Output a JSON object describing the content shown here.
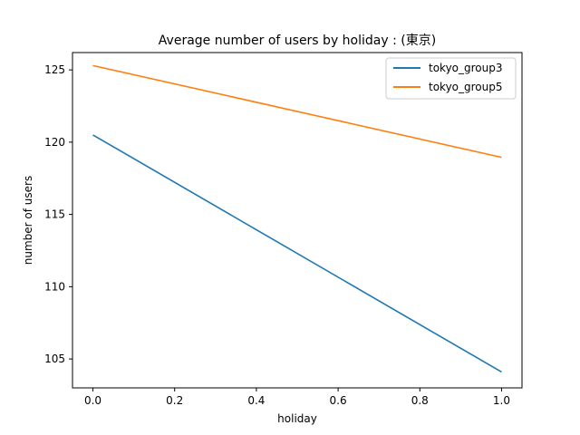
{
  "chart_data": {
    "type": "line",
    "title": "Average number of users by holiday : (東京)",
    "xlabel": "holiday",
    "ylabel": "number of users",
    "x": [
      0.0,
      1.0
    ],
    "xlim": [
      -0.05,
      1.05
    ],
    "ylim": [
      103.0,
      126.2
    ],
    "xticks": [
      0.0,
      0.2,
      0.4,
      0.6,
      0.8,
      1.0
    ],
    "xtick_labels": [
      "0.0",
      "0.2",
      "0.4",
      "0.6",
      "0.8",
      "1.0"
    ],
    "yticks": [
      105,
      110,
      115,
      120,
      125
    ],
    "ytick_labels": [
      "105",
      "110",
      "115",
      "120",
      "125"
    ],
    "series": [
      {
        "name": "tokyo_group3",
        "values": [
          120.5,
          104.1
        ],
        "color": "#1f77b4"
      },
      {
        "name": "tokyo_group5",
        "values": [
          125.3,
          118.95
        ],
        "color": "#ff7f0e"
      }
    ],
    "legend": {
      "position": "top-right"
    },
    "grid": false
  }
}
